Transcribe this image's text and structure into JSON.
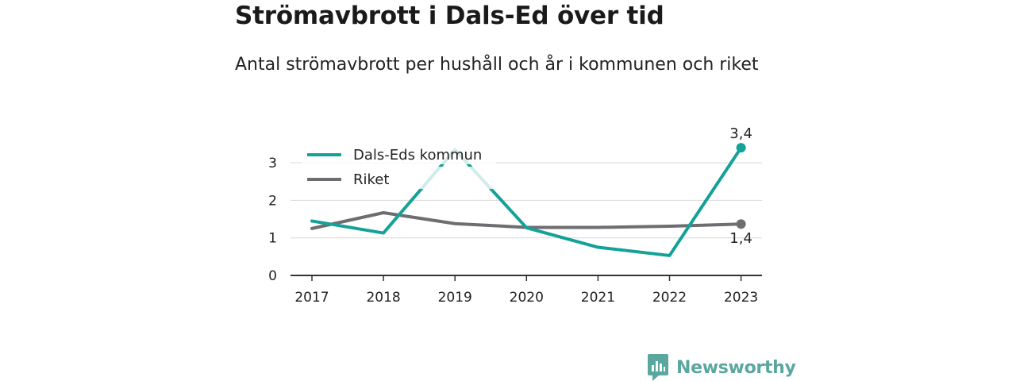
{
  "header": {
    "title": "Strömavbrott i Dals-Ed över tid",
    "subtitle": "Antal strömavbrott per hushåll och år i kommunen och riket"
  },
  "brand": {
    "name": "Newsworthy",
    "icon": "newsworthy-logo-icon",
    "color": "#5aa79f"
  },
  "chart_data": {
    "type": "line",
    "title": "Strömavbrott i Dals-Ed över tid",
    "subtitle": "Antal strömavbrott per hushåll och år i kommunen och riket",
    "xlabel": "",
    "ylabel": "",
    "categories": [
      "2017",
      "2018",
      "2019",
      "2020",
      "2021",
      "2022",
      "2023"
    ],
    "ylim": [
      0,
      3.5
    ],
    "yticks": [
      "0",
      "1",
      "2",
      "3"
    ],
    "grid": true,
    "legend_position": "top-left",
    "series": [
      {
        "name": "Dals-Eds kommun",
        "color": "#14a198",
        "values": [
          1.45,
          1.13,
          3.35,
          1.27,
          0.75,
          0.53,
          3.4
        ],
        "end_label": "3,4"
      },
      {
        "name": "Riket",
        "color": "#6e6d72",
        "values": [
          1.25,
          1.67,
          1.38,
          1.28,
          1.28,
          1.31,
          1.37
        ],
        "end_label": "1,4"
      }
    ]
  }
}
